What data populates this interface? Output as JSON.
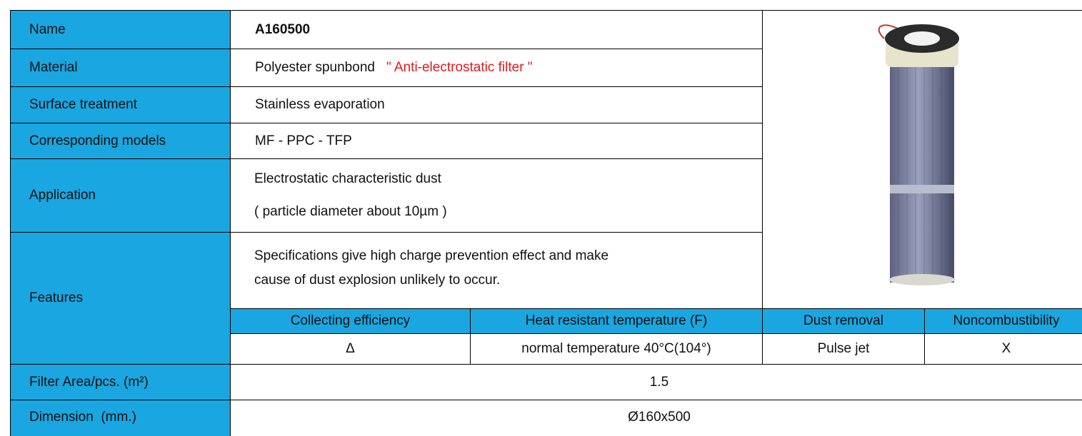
{
  "name": {
    "label": "Name",
    "value": "A160500"
  },
  "material": {
    "label": "Material",
    "value": "Polyester spunbond",
    "note": "\" Anti-electrostatic filter \""
  },
  "surface_treatment": {
    "label": "Surface treatment",
    "value": "Stainless evaporation"
  },
  "corresponding_models": {
    "label": "Corresponding models",
    "value": "MF - PPC - TFP"
  },
  "application": {
    "label": "Application",
    "lines": [
      "Electrostatic characteristic dust",
      "( particle diameter about 10µm )"
    ]
  },
  "features": {
    "label": "Features",
    "lines": [
      "Specifications give high charge prevention effect and make",
      "cause of dust explosion unlikely to occur."
    ],
    "headers": [
      "Collecting efficiency",
      "Heat resistant temperature (F)",
      "Dust removal",
      "Noncombustibility"
    ],
    "values": [
      "Δ",
      "normal temperature 40°C(104°)",
      "Pulse jet",
      "X"
    ]
  },
  "filter_area": {
    "label": "Filter Area/pcs. (m²)",
    "value": "1.5"
  },
  "dimension": {
    "label": "Dimension  (mm.)",
    "value": "Ø160x500"
  }
}
